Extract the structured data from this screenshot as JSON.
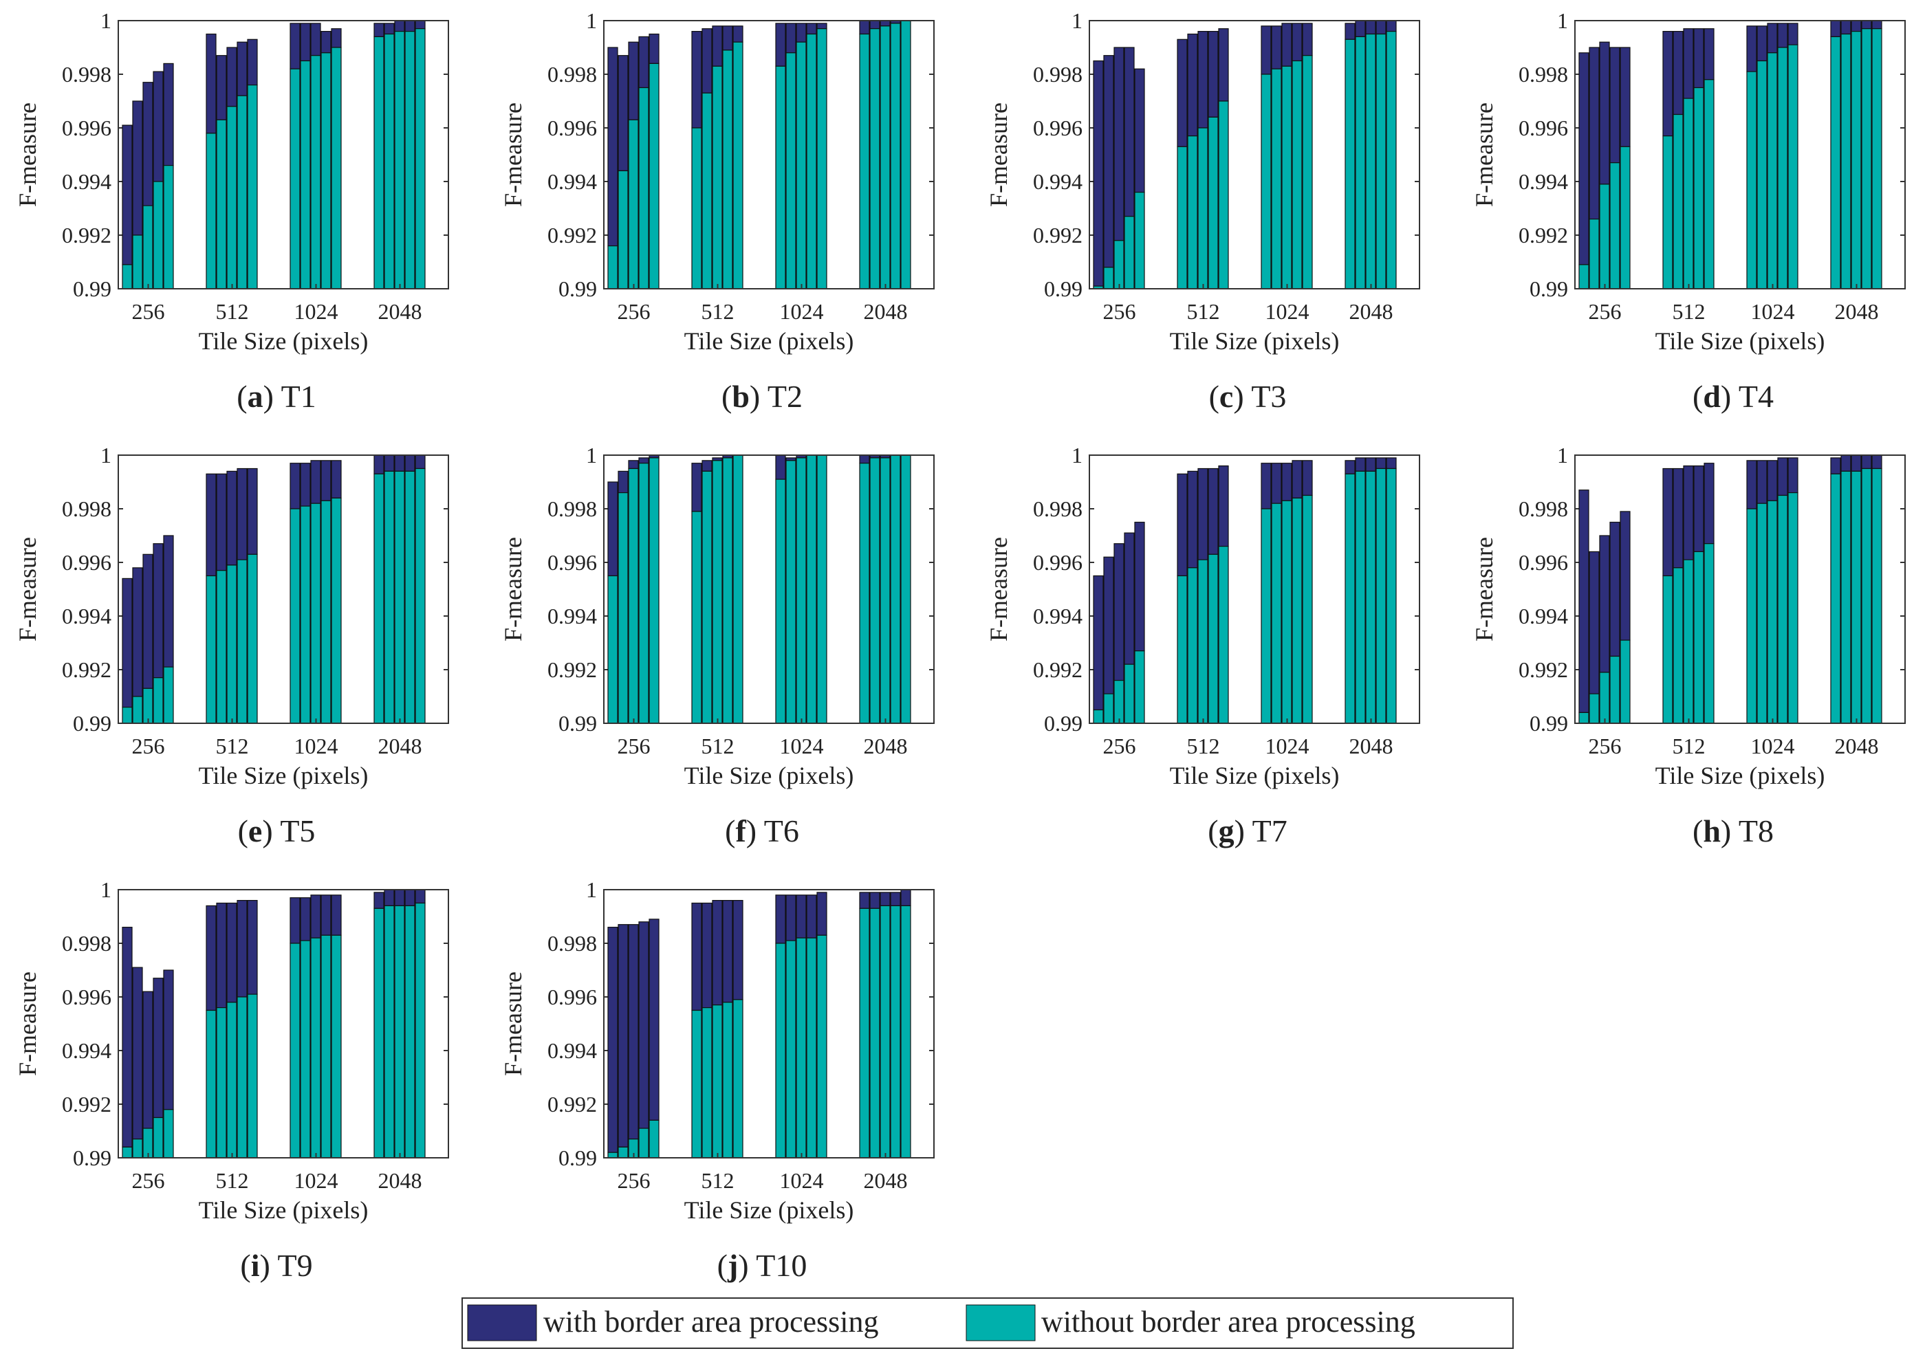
{
  "colors": {
    "with_border": "#2e2f7a",
    "without_border": "#00b0ac",
    "axis": "#333333",
    "text": "#222222"
  },
  "legend": {
    "with_label": "with border area processing",
    "without_label": "without border area processing"
  },
  "chart_data": [
    {
      "type": "bar",
      "stacked": true,
      "panel": "a",
      "title": "T1",
      "xlabel": "Tile Size (pixels)",
      "ylabel": "F-measure",
      "ylim": [
        0.99,
        1.0
      ],
      "yticks": [
        "0.99",
        "0.992",
        "0.994",
        "0.996",
        "0.998",
        "1"
      ],
      "categories": [
        "256",
        "512",
        "1024",
        "2048"
      ],
      "series": [
        {
          "name": "with border area processing",
          "values": [
            [
              0.9961,
              0.997,
              0.9977,
              0.9981,
              0.9984
            ],
            [
              0.9995,
              0.9987,
              0.999,
              0.9992,
              0.9993
            ],
            [
              0.9999,
              0.9999,
              0.9999,
              0.9996,
              0.9997
            ],
            [
              0.9999,
              0.9999,
              1.0,
              1.0,
              1.0
            ]
          ]
        },
        {
          "name": "without border area processing",
          "values": [
            [
              0.9909,
              0.992,
              0.9931,
              0.994,
              0.9946
            ],
            [
              0.9958,
              0.9963,
              0.9968,
              0.9972,
              0.9976
            ],
            [
              0.9982,
              0.9985,
              0.9987,
              0.9988,
              0.999
            ],
            [
              0.9994,
              0.9995,
              0.9996,
              0.9996,
              0.9997
            ]
          ]
        }
      ]
    },
    {
      "type": "bar",
      "stacked": true,
      "panel": "b",
      "title": "T2",
      "xlabel": "Tile Size (pixels)",
      "ylabel": "F-measure",
      "ylim": [
        0.99,
        1.0
      ],
      "yticks": [
        "0.99",
        "0.992",
        "0.994",
        "0.996",
        "0.998",
        "1"
      ],
      "categories": [
        "256",
        "512",
        "1024",
        "2048"
      ],
      "series": [
        {
          "name": "with border area processing",
          "values": [
            [
              0.999,
              0.9987,
              0.9992,
              0.9994,
              0.9995
            ],
            [
              0.9996,
              0.9997,
              0.9998,
              0.9998,
              0.9998
            ],
            [
              0.9999,
              0.9999,
              0.9999,
              0.9999,
              0.9999
            ],
            [
              1.0,
              1.0,
              1.0,
              1.0,
              1.0
            ]
          ]
        },
        {
          "name": "without border area processing",
          "values": [
            [
              0.9916,
              0.9944,
              0.9963,
              0.9975,
              0.9984
            ],
            [
              0.996,
              0.9973,
              0.9983,
              0.9989,
              0.9992
            ],
            [
              0.9983,
              0.9988,
              0.9992,
              0.9995,
              0.9997
            ],
            [
              0.9995,
              0.9997,
              0.9998,
              0.9999,
              1.0
            ]
          ]
        }
      ]
    },
    {
      "type": "bar",
      "stacked": true,
      "panel": "c",
      "title": "T3",
      "xlabel": "Tile Size (pixels)",
      "ylabel": "F-measure",
      "ylim": [
        0.99,
        1.0
      ],
      "yticks": [
        "0.99",
        "0.992",
        "0.994",
        "0.996",
        "0.998",
        "1"
      ],
      "categories": [
        "256",
        "512",
        "1024",
        "2048"
      ],
      "series": [
        {
          "name": "with border area processing",
          "values": [
            [
              0.9985,
              0.9987,
              0.999,
              0.999,
              0.9982
            ],
            [
              0.9993,
              0.9995,
              0.9996,
              0.9996,
              0.9997
            ],
            [
              0.9998,
              0.9998,
              0.9999,
              0.9999,
              0.9999
            ],
            [
              0.9999,
              1.0,
              1.0,
              1.0,
              1.0
            ]
          ]
        },
        {
          "name": "without border area processing",
          "values": [
            [
              0.9901,
              0.9908,
              0.9918,
              0.9927,
              0.9936
            ],
            [
              0.9953,
              0.9957,
              0.996,
              0.9964,
              0.997
            ],
            [
              0.998,
              0.9982,
              0.9983,
              0.9985,
              0.9987
            ],
            [
              0.9993,
              0.9994,
              0.9995,
              0.9995,
              0.9996
            ]
          ]
        }
      ]
    },
    {
      "type": "bar",
      "stacked": true,
      "panel": "d",
      "title": "T4",
      "xlabel": "Tile Size (pixels)",
      "ylabel": "F-measure",
      "ylim": [
        0.99,
        1.0
      ],
      "yticks": [
        "0.99",
        "0.992",
        "0.994",
        "0.996",
        "0.998",
        "1"
      ],
      "categories": [
        "256",
        "512",
        "1024",
        "2048"
      ],
      "series": [
        {
          "name": "with border area processing",
          "values": [
            [
              0.9988,
              0.999,
              0.9992,
              0.999,
              0.999
            ],
            [
              0.9996,
              0.9996,
              0.9997,
              0.9997,
              0.9997
            ],
            [
              0.9998,
              0.9998,
              0.9999,
              0.9999,
              0.9999
            ],
            [
              1.0,
              1.0,
              1.0,
              1.0,
              1.0
            ]
          ]
        },
        {
          "name": "without border area processing",
          "values": [
            [
              0.9909,
              0.9926,
              0.9939,
              0.9947,
              0.9953
            ],
            [
              0.9957,
              0.9965,
              0.9971,
              0.9975,
              0.9978
            ],
            [
              0.9981,
              0.9985,
              0.9988,
              0.999,
              0.9991
            ],
            [
              0.9994,
              0.9995,
              0.9996,
              0.9997,
              0.9997
            ]
          ]
        }
      ]
    },
    {
      "type": "bar",
      "stacked": true,
      "panel": "e",
      "title": "T5",
      "xlabel": "Tile Size (pixels)",
      "ylabel": "F-measure",
      "ylim": [
        0.99,
        1.0
      ],
      "yticks": [
        "0.99",
        "0.992",
        "0.994",
        "0.996",
        "0.998",
        "1"
      ],
      "categories": [
        "256",
        "512",
        "1024",
        "2048"
      ],
      "series": [
        {
          "name": "with border area processing",
          "values": [
            [
              0.9954,
              0.9958,
              0.9963,
              0.9967,
              0.997
            ],
            [
              0.9993,
              0.9993,
              0.9994,
              0.9995,
              0.9995
            ],
            [
              0.9997,
              0.9997,
              0.9998,
              0.9998,
              0.9998
            ],
            [
              1.0,
              1.0,
              1.0,
              1.0,
              1.0
            ]
          ]
        },
        {
          "name": "without border area processing",
          "values": [
            [
              0.9906,
              0.991,
              0.9913,
              0.9917,
              0.9921
            ],
            [
              0.9955,
              0.9957,
              0.9959,
              0.9961,
              0.9963
            ],
            [
              0.998,
              0.9981,
              0.9982,
              0.9983,
              0.9984
            ],
            [
              0.9993,
              0.9994,
              0.9994,
              0.9994,
              0.9995
            ]
          ]
        }
      ]
    },
    {
      "type": "bar",
      "stacked": true,
      "panel": "f",
      "title": "T6",
      "xlabel": "Tile Size (pixels)",
      "ylabel": "F-measure",
      "ylim": [
        0.99,
        1.0
      ],
      "yticks": [
        "0.99",
        "0.992",
        "0.994",
        "0.996",
        "0.998",
        "1"
      ],
      "categories": [
        "256",
        "512",
        "1024",
        "2048"
      ],
      "series": [
        {
          "name": "with border area processing",
          "values": [
            [
              0.999,
              0.9994,
              0.9998,
              0.9999,
              1.0
            ],
            [
              0.9997,
              0.9998,
              0.9999,
              1.0,
              1.0
            ],
            [
              1.0,
              0.9999,
              1.0,
              1.0,
              1.0
            ],
            [
              1.0,
              1.0,
              1.0,
              1.0,
              1.0
            ]
          ]
        },
        {
          "name": "without border area processing",
          "values": [
            [
              0.9955,
              0.9986,
              0.9995,
              0.9997,
              0.9999
            ],
            [
              0.9979,
              0.9994,
              0.9998,
              0.9999,
              1.0
            ],
            [
              0.9991,
              0.9998,
              0.9999,
              1.0,
              1.0
            ],
            [
              0.9997,
              0.9999,
              0.9999,
              1.0,
              1.0
            ]
          ]
        }
      ]
    },
    {
      "type": "bar",
      "stacked": true,
      "panel": "g",
      "title": "T7",
      "xlabel": "Tile Size (pixels)",
      "ylabel": "F-measure",
      "ylim": [
        0.99,
        1.0
      ],
      "yticks": [
        "0.99",
        "0.992",
        "0.994",
        "0.996",
        "0.998",
        "1"
      ],
      "categories": [
        "256",
        "512",
        "1024",
        "2048"
      ],
      "series": [
        {
          "name": "with border area processing",
          "values": [
            [
              0.9955,
              0.9962,
              0.9967,
              0.9971,
              0.9975
            ],
            [
              0.9993,
              0.9994,
              0.9995,
              0.9995,
              0.9996
            ],
            [
              0.9997,
              0.9997,
              0.9997,
              0.9998,
              0.9998
            ],
            [
              0.9998,
              0.9999,
              0.9999,
              0.9999,
              0.9999
            ]
          ]
        },
        {
          "name": "without border area processing",
          "values": [
            [
              0.9905,
              0.9911,
              0.9916,
              0.9922,
              0.9927
            ],
            [
              0.9955,
              0.9958,
              0.9961,
              0.9963,
              0.9966
            ],
            [
              0.998,
              0.9982,
              0.9983,
              0.9984,
              0.9985
            ],
            [
              0.9993,
              0.9994,
              0.9994,
              0.9995,
              0.9995
            ]
          ]
        }
      ]
    },
    {
      "type": "bar",
      "stacked": true,
      "panel": "h",
      "title": "T8",
      "xlabel": "Tile Size (pixels)",
      "ylabel": "F-measure",
      "ylim": [
        0.99,
        1.0
      ],
      "yticks": [
        "0.99",
        "0.992",
        "0.994",
        "0.996",
        "0.998",
        "1"
      ],
      "categories": [
        "256",
        "512",
        "1024",
        "2048"
      ],
      "series": [
        {
          "name": "with border area processing",
          "values": [
            [
              0.9987,
              0.9964,
              0.997,
              0.9975,
              0.9979
            ],
            [
              0.9995,
              0.9995,
              0.9996,
              0.9996,
              0.9997
            ],
            [
              0.9998,
              0.9998,
              0.9998,
              0.9999,
              0.9999
            ],
            [
              0.9999,
              1.0,
              1.0,
              1.0,
              1.0
            ]
          ]
        },
        {
          "name": "without border area processing",
          "values": [
            [
              0.9904,
              0.9911,
              0.9919,
              0.9925,
              0.9931
            ],
            [
              0.9955,
              0.9958,
              0.9961,
              0.9964,
              0.9967
            ],
            [
              0.998,
              0.9982,
              0.9983,
              0.9985,
              0.9986
            ],
            [
              0.9993,
              0.9994,
              0.9994,
              0.9995,
              0.9995
            ]
          ]
        }
      ]
    },
    {
      "type": "bar",
      "stacked": true,
      "panel": "i",
      "title": "T9",
      "xlabel": "Tile Size (pixels)",
      "ylabel": "F-measure",
      "ylim": [
        0.99,
        1.0
      ],
      "yticks": [
        "0.99",
        "0.992",
        "0.994",
        "0.996",
        "0.998",
        "1"
      ],
      "categories": [
        "256",
        "512",
        "1024",
        "2048"
      ],
      "series": [
        {
          "name": "with border area processing",
          "values": [
            [
              0.9986,
              0.9971,
              0.9962,
              0.9967,
              0.997
            ],
            [
              0.9994,
              0.9995,
              0.9995,
              0.9996,
              0.9996
            ],
            [
              0.9997,
              0.9997,
              0.9998,
              0.9998,
              0.9998
            ],
            [
              0.9999,
              1.0,
              1.0,
              1.0,
              1.0
            ]
          ]
        },
        {
          "name": "without border area processing",
          "values": [
            [
              0.9904,
              0.9907,
              0.9911,
              0.9915,
              0.9918
            ],
            [
              0.9955,
              0.9956,
              0.9958,
              0.996,
              0.9961
            ],
            [
              0.998,
              0.9981,
              0.9982,
              0.9983,
              0.9983
            ],
            [
              0.9993,
              0.9994,
              0.9994,
              0.9994,
              0.9995
            ]
          ]
        }
      ]
    },
    {
      "type": "bar",
      "stacked": true,
      "panel": "j",
      "title": "T10",
      "xlabel": "Tile Size (pixels)",
      "ylabel": "F-measure",
      "ylim": [
        0.99,
        1.0
      ],
      "yticks": [
        "0.99",
        "0.992",
        "0.994",
        "0.996",
        "0.998",
        "1"
      ],
      "categories": [
        "256",
        "512",
        "1024",
        "2048"
      ],
      "series": [
        {
          "name": "with border area processing",
          "values": [
            [
              0.9986,
              0.9987,
              0.9987,
              0.9988,
              0.9989
            ],
            [
              0.9995,
              0.9995,
              0.9996,
              0.9996,
              0.9996
            ],
            [
              0.9998,
              0.9998,
              0.9998,
              0.9998,
              0.9999
            ],
            [
              0.9999,
              0.9999,
              0.9999,
              0.9999,
              1.0
            ]
          ]
        },
        {
          "name": "without border area processing",
          "values": [
            [
              0.9902,
              0.9904,
              0.9907,
              0.9911,
              0.9914
            ],
            [
              0.9955,
              0.9956,
              0.9957,
              0.9958,
              0.9959
            ],
            [
              0.998,
              0.9981,
              0.9982,
              0.9982,
              0.9983
            ],
            [
              0.9993,
              0.9993,
              0.9994,
              0.9994,
              0.9994
            ]
          ]
        }
      ]
    }
  ]
}
